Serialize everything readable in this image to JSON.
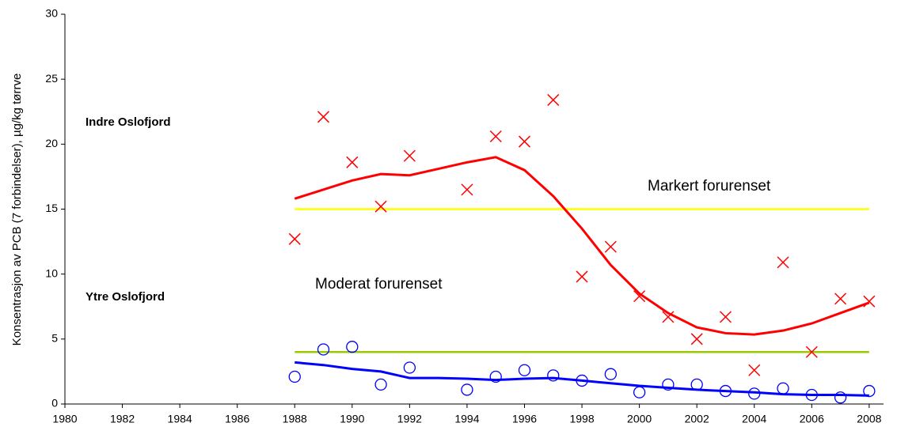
{
  "chart_data": {
    "type": "line",
    "ylabel": "Konsentrasjon av PCB (7 forbindelser), µg/kg tørrve",
    "annotations": [
      "Indre Oslofjord",
      "Ytre Oslofjord",
      "Markert forurenset",
      "Moderat forurenset"
    ],
    "xlim": [
      1980,
      2008.5
    ],
    "xticks": [
      1980,
      1982,
      1984,
      1986,
      1988,
      1990,
      1992,
      1994,
      1996,
      1998,
      2000,
      2002,
      2004,
      2006,
      2008
    ],
    "ylim": [
      0,
      30
    ],
    "yticks": [
      0,
      5,
      10,
      15,
      20,
      25,
      30
    ],
    "grid": false,
    "hlines": [
      {
        "value": 15,
        "color": "#ffff00",
        "x": [
          1988,
          2008
        ]
      },
      {
        "value": 4,
        "color": "#99cc00",
        "x": [
          1988,
          2008
        ]
      }
    ],
    "series": [
      {
        "color": "#ff0000",
        "marker": "x",
        "x": [
          1988,
          1989,
          1990,
          1991,
          1992,
          1994,
          1995,
          1996,
          1997,
          1998,
          1999,
          2000,
          2001,
          2002,
          2003,
          2004,
          2005,
          2006,
          2007,
          2008
        ],
        "values": [
          12.7,
          22.1,
          18.6,
          15.2,
          19.1,
          16.5,
          20.6,
          20.2,
          23.4,
          9.8,
          12.1,
          8.3,
          6.7,
          5.0,
          6.7,
          2.6,
          10.9,
          4.0,
          8.1,
          7.9
        ]
      },
      {
        "color": "#ff0000",
        "marker": "none",
        "x": [
          1988,
          1989,
          1990,
          1991,
          1992,
          1993,
          1994,
          1995,
          1996,
          1997,
          1998,
          1999,
          2000,
          2001,
          2002,
          2003,
          2004,
          2005,
          2006,
          2007,
          2008
        ],
        "values": [
          15.8,
          16.5,
          17.2,
          17.7,
          17.6,
          18.1,
          18.6,
          19.0,
          18.0,
          16.0,
          13.5,
          10.7,
          8.5,
          7.0,
          5.9,
          5.45,
          5.35,
          5.65,
          6.2,
          7.0,
          7.8
        ]
      },
      {
        "color": "#0000ff",
        "marker": "circle",
        "x": [
          1988,
          1989,
          1990,
          1991,
          1992,
          1994,
          1995,
          1996,
          1997,
          1998,
          1999,
          2000,
          2001,
          2002,
          2003,
          2004,
          2005,
          2006,
          2007,
          2008
        ],
        "values": [
          2.1,
          4.2,
          4.4,
          1.5,
          2.8,
          1.1,
          2.1,
          2.6,
          2.2,
          1.8,
          2.3,
          0.9,
          1.5,
          1.5,
          1.0,
          0.8,
          1.2,
          0.7,
          0.5,
          1.0
        ]
      },
      {
        "color": "#0000ff",
        "marker": "none",
        "x": [
          1988,
          1989,
          1990,
          1991,
          1992,
          1993,
          1994,
          1995,
          1996,
          1997,
          1998,
          1999,
          2000,
          2001,
          2002,
          2003,
          2004,
          2005,
          2006,
          2007,
          2008
        ],
        "values": [
          3.2,
          3.0,
          2.7,
          2.5,
          2.0,
          2.0,
          1.95,
          1.85,
          1.95,
          2.0,
          1.8,
          1.6,
          1.4,
          1.25,
          1.1,
          1.0,
          0.9,
          0.75,
          0.7,
          0.7,
          0.65
        ]
      }
    ]
  }
}
